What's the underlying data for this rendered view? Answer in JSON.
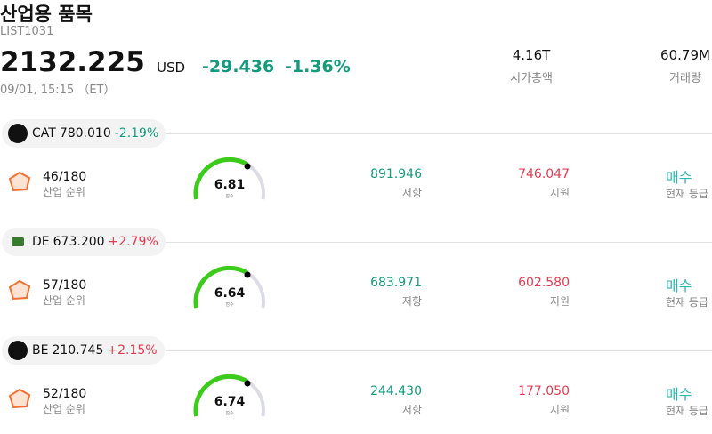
{
  "header": {
    "title": "산업용 품목",
    "code": "LIST1031",
    "price": "2132.225",
    "currency": "USD",
    "change": "-29.436",
    "change_pct": "-1.36%",
    "change_color": "#149a7c",
    "datetime": "09/01, 15:15 （ET）"
  },
  "stats": [
    {
      "value": "4.16T",
      "label": "시가총액"
    },
    {
      "value": "60.79M",
      "label": "거래량"
    }
  ],
  "rows": [
    {
      "ticker": "CAT",
      "price": "780.010",
      "change": "-2.19%",
      "change_color": "#149a7c",
      "rank": "46/180",
      "rank_label": "산업 순위",
      "score": "6.81",
      "score_label": "점수",
      "resistance": "891.946",
      "resistance_label": "저항",
      "support": "746.047",
      "support_label": "지원",
      "rating": "매수",
      "rating_label": "현재 등급"
    },
    {
      "ticker": "DE",
      "price": "673.200",
      "change": "+2.79%",
      "change_color": "#e8384f",
      "rank": "57/180",
      "rank_label": "산업 순위",
      "score": "6.64",
      "score_label": "점수",
      "resistance": "683.971",
      "resistance_label": "저항",
      "support": "602.580",
      "support_label": "지원",
      "rating": "매수",
      "rating_label": "현재 등급"
    },
    {
      "ticker": "BE",
      "price": "210.745",
      "change": "+2.15%",
      "change_color": "#e8384f",
      "rank": "52/180",
      "rank_label": "산업 순위",
      "score": "6.74",
      "score_label": "점수",
      "resistance": "244.430",
      "resistance_label": "저항",
      "support": "177.050",
      "support_label": "지원",
      "rating": "매수",
      "rating_label": "현재 등급"
    }
  ]
}
